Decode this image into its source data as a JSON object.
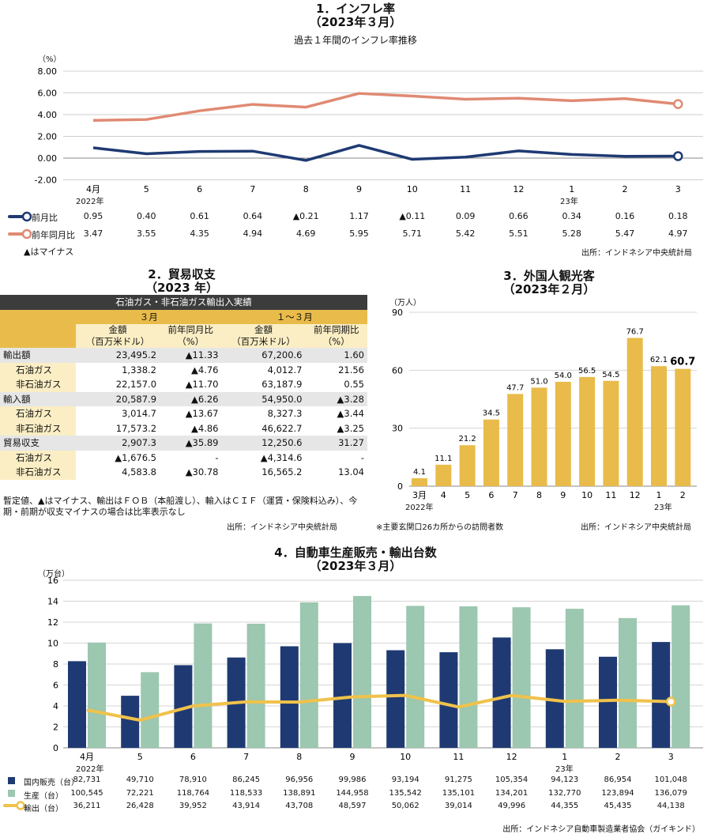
{
  "colors": {
    "navy": "#1f3a73",
    "salmon": "#e08a72",
    "gold": "#e9bb4a",
    "green": "#9cc7b0",
    "yellow": "#f0c24b"
  },
  "inflation": {
    "title": "1．インフレ率",
    "subtitle": "（2023年３月）",
    "caption": "過去１年間のインフレ率推移",
    "unit": "（%）",
    "note": "▲はマイナス",
    "source": "出所：インドネシア中央統計局",
    "year_labels": [
      "2022年",
      "23年"
    ],
    "legend": [
      "前月比",
      "前年同月比"
    ],
    "row_mom": [
      "0.95",
      "0.40",
      "0.61",
      "0.64",
      "▲0.21",
      "1.17",
      "▲0.11",
      "0.09",
      "0.66",
      "0.34",
      "0.16",
      "0.18"
    ],
    "row_yoy": [
      "3.47",
      "3.55",
      "4.35",
      "4.94",
      "4.69",
      "5.95",
      "5.71",
      "5.42",
      "5.51",
      "5.28",
      "5.47",
      "4.97"
    ]
  },
  "trade": {
    "title": "2．貿易収支",
    "subtitle": "（2023 年）",
    "header": "石油ガス・非石油ガス輸出入実績",
    "period_month": "３月",
    "period_q": "１～３月",
    "col_amount": "金額\n（百万米ドル）",
    "col_yoy": "前年同月比\n（%）",
    "col_amount2": "金額\n（百万米ドル）",
    "col_yoy2": "前年同期比\n（%）",
    "rows": [
      {
        "label": "輸出額",
        "a": "23,495.2",
        "b": "▲11.33",
        "c": "67,200.6",
        "d": "1.60",
        "sub": false
      },
      {
        "label": "石油ガス",
        "a": "1,338.2",
        "b": "▲4.76",
        "c": "4,012.7",
        "d": "21.56",
        "sub": true
      },
      {
        "label": "非石油ガス",
        "a": "22,157.0",
        "b": "▲11.70",
        "c": "63,187.9",
        "d": "0.55",
        "sub": true
      },
      {
        "label": "輸入額",
        "a": "20,587.9",
        "b": "▲6.26",
        "c": "54,950.0",
        "d": "▲3.28",
        "sub": false
      },
      {
        "label": "石油ガス",
        "a": "3,014.7",
        "b": "▲13.67",
        "c": "8,327.3",
        "d": "▲3.44",
        "sub": true
      },
      {
        "label": "非石油ガス",
        "a": "17,573.2",
        "b": "▲4.86",
        "c": "46,622.7",
        "d": "▲3.25",
        "sub": true
      },
      {
        "label": "貿易収支",
        "a": "2,907.3",
        "b": "▲35.89",
        "c": "12,250.6",
        "d": "31.27",
        "sub": false
      },
      {
        "label": "石油ガス",
        "a": "▲1,676.5",
        "b": "-",
        "c": "▲4,314.6",
        "d": "-",
        "sub": true
      },
      {
        "label": "非石油ガス",
        "a": "4,583.8",
        "b": "▲30.78",
        "c": "16,565.2",
        "d": "13.04",
        "sub": true
      }
    ],
    "note": "暫定値、▲はマイナス、輸出はＦＯＢ（本船渡し）、輸入はＣＩＦ（運賃・保険料込み）、今期・前期が収支マイナスの場合は比率表示なし",
    "source": "出所：インドネシア中央統計局"
  },
  "tourism": {
    "title": "3．外国人観光客",
    "subtitle": "（2023年２月）",
    "unit": "（万人）",
    "note": "※主要玄関口26カ所からの訪問者数",
    "source": "出所：インドネシア中央統計局",
    "year_labels": [
      "2022年",
      "23年"
    ]
  },
  "auto": {
    "title": "4．自動車生産販売・輸出台数",
    "subtitle": "（2023年３月）",
    "unit": "（万台）",
    "year_labels": [
      "2022年",
      "23年"
    ],
    "legend": [
      "国内販売（台）",
      "生産（台）",
      "輸出（台）"
    ],
    "row_sales": [
      "82,731",
      "49,710",
      "78,910",
      "86,245",
      "96,956",
      "99,986",
      "93,194",
      "91,275",
      "105,354",
      "94,123",
      "86,954",
      "101,048"
    ],
    "row_prod": [
      "100,545",
      "72,221",
      "118,764",
      "118,533",
      "138,891",
      "144,958",
      "135,542",
      "135,101",
      "134,201",
      "132,770",
      "123,894",
      "136,079"
    ],
    "row_export": [
      "36,211",
      "26,428",
      "39,952",
      "43,914",
      "43,708",
      "48,597",
      "50,062",
      "39,014",
      "49,996",
      "44,355",
      "45,435",
      "44,138"
    ],
    "source": "出所：インドネシア自動車製造業者協会（ガイキンド）"
  },
  "chart_data": [
    {
      "type": "line",
      "x": [
        "4月",
        "5",
        "6",
        "7",
        "8",
        "9",
        "10",
        "11",
        "12",
        "1",
        "2",
        "3"
      ],
      "series": [
        {
          "name": "前月比",
          "values": [
            0.95,
            0.4,
            0.61,
            0.64,
            -0.21,
            1.17,
            -0.11,
            0.09,
            0.66,
            0.34,
            0.16,
            0.18
          ]
        },
        {
          "name": "前年同月比",
          "values": [
            3.47,
            3.55,
            4.35,
            4.94,
            4.69,
            5.95,
            5.71,
            5.42,
            5.51,
            5.28,
            5.47,
            4.97
          ]
        }
      ],
      "ylim": [
        -2,
        8
      ],
      "yticks": [
        "-2.00",
        "0.00",
        "2.00",
        "4.00",
        "6.00",
        "8.00"
      ],
      "grid": true
    },
    {
      "type": "bar",
      "categories": [
        "3月",
        "4",
        "5",
        "6",
        "7",
        "8",
        "9",
        "10",
        "11",
        "12",
        "1",
        "2"
      ],
      "values": [
        4.1,
        11.1,
        21.2,
        34.5,
        47.7,
        51.0,
        54.0,
        56.5,
        54.5,
        76.7,
        62.1,
        60.7
      ],
      "labels": [
        "4.1",
        "11.1",
        "21.2",
        "34.5",
        "47.7",
        "51.0",
        "54.0",
        "56.5",
        "54.5",
        "76.7",
        "62.1",
        "60.7"
      ],
      "ylim": [
        0,
        90
      ],
      "yticks": [
        "0",
        "30",
        "60",
        "90"
      ],
      "grid": true
    },
    {
      "type": "bar",
      "categories": [
        "4月",
        "5",
        "6",
        "7",
        "8",
        "9",
        "10",
        "11",
        "12",
        "1",
        "2",
        "3"
      ],
      "series": [
        {
          "name": "国内販売（台）",
          "values": [
            8.2731,
            4.971,
            7.891,
            8.6245,
            9.6956,
            9.9986,
            9.3194,
            9.1275,
            10.5354,
            9.4123,
            8.6954,
            10.1048
          ]
        },
        {
          "name": "生産（台）",
          "values": [
            10.0545,
            7.2221,
            11.8764,
            11.8533,
            13.8891,
            14.4958,
            13.5542,
            13.5101,
            13.4201,
            13.277,
            12.3894,
            13.6079
          ]
        },
        {
          "name": "輸出（台）",
          "values": [
            3.6211,
            2.6428,
            3.9952,
            4.3914,
            4.3708,
            4.8597,
            5.0062,
            3.9014,
            4.9996,
            4.4355,
            4.5435,
            4.4138
          ]
        }
      ],
      "ylim": [
        0,
        16
      ],
      "yticks": [
        "0",
        "2",
        "4",
        "6",
        "8",
        "10",
        "12",
        "14",
        "16"
      ],
      "grid": true
    }
  ]
}
